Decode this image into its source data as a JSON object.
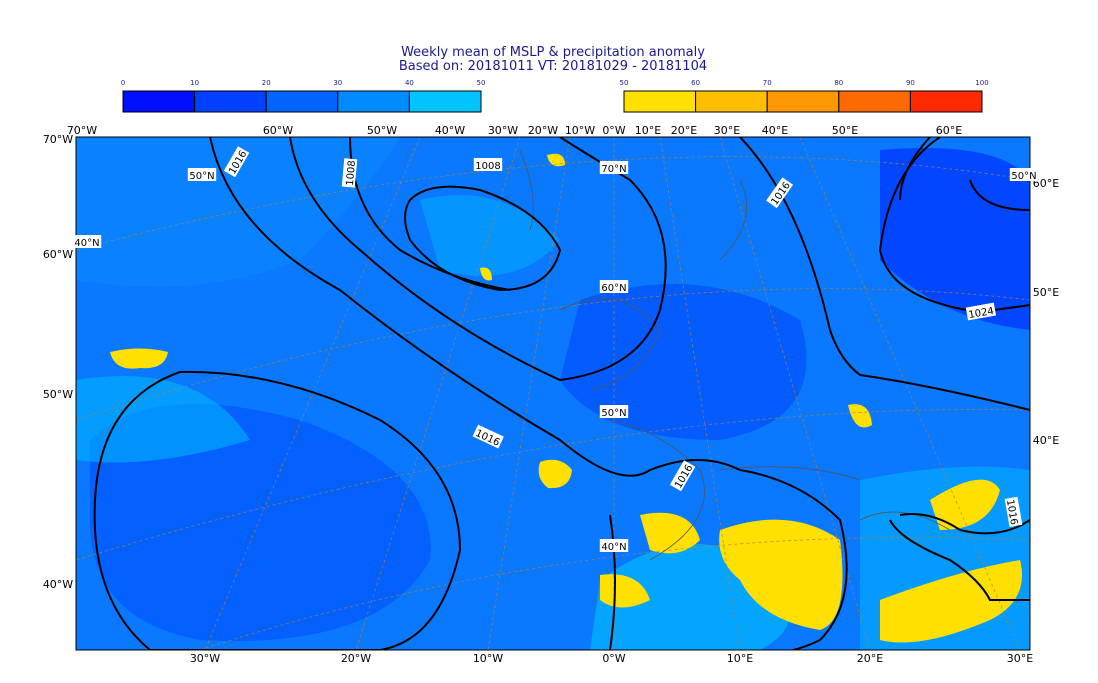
{
  "title": {
    "line1": "Weekly mean of MSLP & precipitation anomaly",
    "line2": "Based on: 20181011 VT: 20181029 - 20181104"
  },
  "colorbars": [
    {
      "ticks": [
        "0",
        "10",
        "20",
        "30",
        "40",
        "50"
      ],
      "colors": [
        "#0010ff",
        "#0040ff",
        "#0064ff",
        "#008cff",
        "#00c4ff"
      ]
    },
    {
      "ticks": [
        "50",
        "60",
        "70",
        "80",
        "90",
        "100"
      ],
      "colors": [
        "#ffe000",
        "#ffbe00",
        "#ff9800",
        "#ff6a00",
        "#ff2a00"
      ]
    }
  ],
  "labels": {
    "top": [
      "70°W",
      "60°W",
      "50°W",
      "40°W",
      "30°W",
      "20°W",
      "10°W",
      "0°W",
      "10°E",
      "20°E",
      "30°E",
      "40°E",
      "50°E",
      "60°E"
    ],
    "bottom": [
      "30°W",
      "20°W",
      "10°W",
      "0°W",
      "10°E",
      "20°E",
      "30°E"
    ],
    "left": [
      "70°W",
      "60°W",
      "50°W",
      "40°W"
    ],
    "right": [
      "60°E",
      "50°E",
      "40°E"
    ],
    "latitudes": [
      "50°N",
      "40°N",
      "70°N",
      "60°N",
      "50°N",
      "40°N",
      "50°N"
    ],
    "isobars": [
      "1016",
      "1008",
      "1008",
      "1016",
      "1024",
      "1016",
      "1016",
      "1016"
    ]
  }
}
